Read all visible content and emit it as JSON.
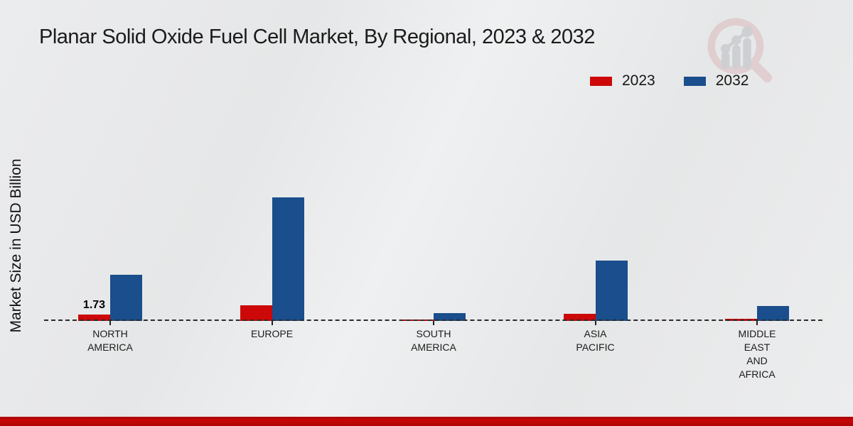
{
  "title": "Planar Solid Oxide Fuel Cell Market, By Regional, 2023 & 2032",
  "ylabel": "Market Size in USD Billion",
  "legend": [
    {
      "label": "2023",
      "color": "#cc0808"
    },
    {
      "label": "2032",
      "color": "#1a4e8c"
    }
  ],
  "watermark_icon": "magnifier-growth-chart-logo",
  "footer": {
    "strip_color": "#c00606"
  },
  "chart_data": {
    "type": "bar",
    "title": "Planar Solid Oxide Fuel Cell Market, By Regional, 2023 & 2032",
    "xlabel": "",
    "ylabel": "Market Size in USD Billion",
    "categories": [
      "NORTH\nAMERICA",
      "EUROPE",
      "SOUTH\nAMERICA",
      "ASIA\nPACIFIC",
      "MIDDLE\nEAST\nAND\nAFRICA"
    ],
    "series": [
      {
        "name": "2023",
        "color": "#cc0808",
        "values": [
          1.73,
          4.2,
          0.4,
          1.9,
          0.6
        ],
        "labels": [
          "1.73",
          "",
          "",
          "",
          ""
        ]
      },
      {
        "name": "2032",
        "color": "#1a4e8c",
        "values": [
          12.5,
          33.5,
          2.1,
          16.3,
          4.0
        ],
        "labels": [
          "",
          "",
          "",
          "",
          ""
        ]
      }
    ],
    "ylim": [
      0,
      40
    ],
    "grid": false,
    "axis_lines": "dashed-baseline-only",
    "legend_position": "top-right",
    "unit": "USD Billion"
  }
}
